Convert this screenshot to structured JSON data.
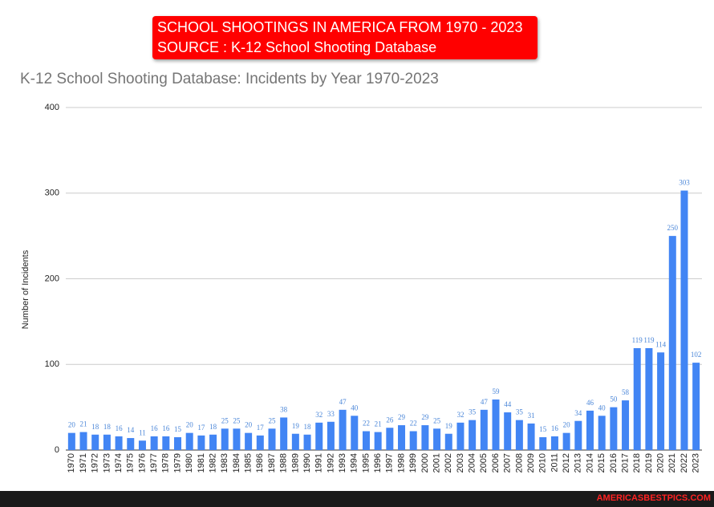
{
  "banner": {
    "line1": "SCHOOL SHOOTINGS IN AMERICA FROM 1970 - 2023",
    "line2": "SOURCE : K-12 School Shooting Database"
  },
  "footer": "AMERICASBESTPICS.COM",
  "chart_data": {
    "type": "bar",
    "title": "K-12 School Shooting Database: Incidents by Year 1970-2023",
    "y_label": "Number of Incidents",
    "categories": [
      "1970",
      "1971",
      "1972",
      "1973",
      "1974",
      "1975",
      "1976",
      "1977",
      "1978",
      "1979",
      "1980",
      "1981",
      "1982",
      "1983",
      "1984",
      "1985",
      "1986",
      "1987",
      "1988",
      "1989",
      "1990",
      "1991",
      "1992",
      "1993",
      "1994",
      "1995",
      "1996",
      "1997",
      "1998",
      "1999",
      "2000",
      "2001",
      "2002",
      "2003",
      "2004",
      "2005",
      "2006",
      "2007",
      "2008",
      "2009",
      "2010",
      "2011",
      "2012",
      "2013",
      "2014",
      "2015",
      "2016",
      "2017",
      "2018",
      "2019",
      "2020",
      "2021",
      "2022",
      "2023"
    ],
    "values": [
      20,
      21,
      18,
      18,
      16,
      14,
      11,
      16,
      16,
      15,
      20,
      17,
      18,
      25,
      25,
      20,
      17,
      25,
      38,
      19,
      18,
      32,
      33,
      47,
      40,
      22,
      21,
      26,
      29,
      22,
      29,
      25,
      19,
      32,
      35,
      47,
      59,
      44,
      35,
      31,
      15,
      16,
      20,
      34,
      46,
      40,
      50,
      58,
      119,
      119,
      114,
      250,
      303,
      102
    ],
    "color": "#4285f4",
    "label_color": "#4a86d8",
    "ylim": [
      0,
      400
    ],
    "yticks": [
      0,
      100,
      200,
      300,
      400
    ],
    "grid": true
  }
}
